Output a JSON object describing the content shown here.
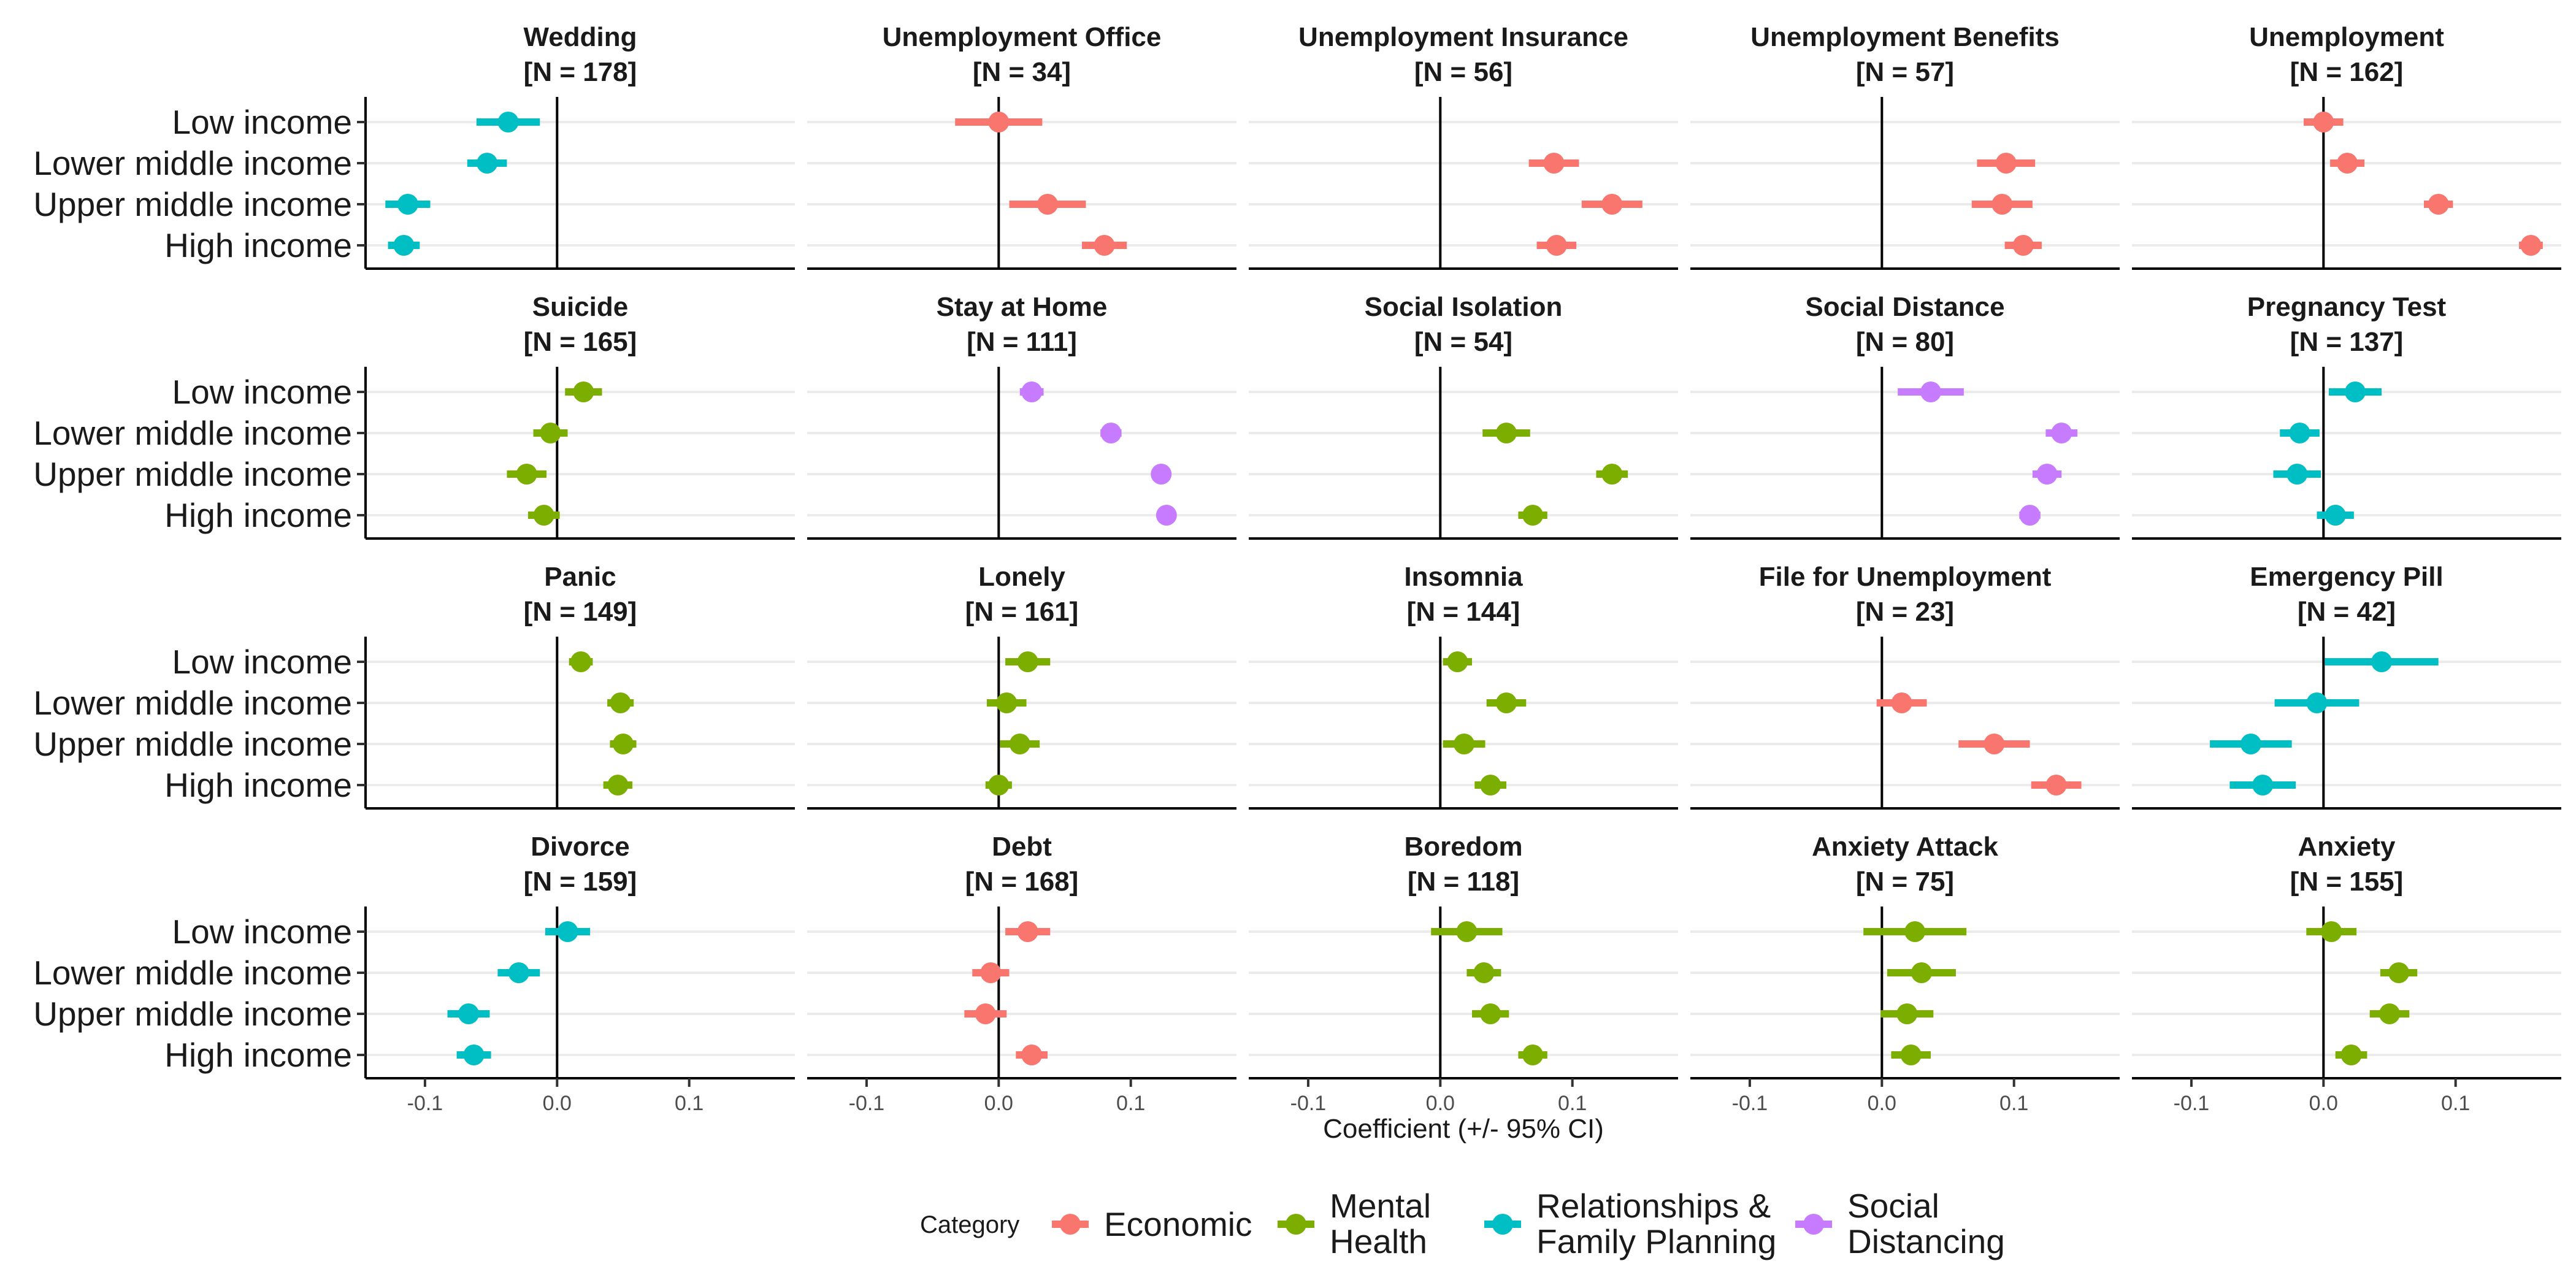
{
  "chart_data": {
    "type": "scatter",
    "subtype": "coefficient-plot-faceted",
    "x_axis": {
      "label": "Coefficient (+/- 95% CI)",
      "ticks": [
        -0.1,
        0.0,
        0.1
      ],
      "tick_labels": [
        "-0.1",
        "0.0",
        "0.1"
      ],
      "xlim": [
        -0.145,
        0.18
      ],
      "reference_line": 0
    },
    "rows": [
      "Low income",
      "Lower middle income",
      "Upper middle income",
      "High income"
    ],
    "legend": {
      "title": "Category",
      "position": "bottom",
      "items": [
        {
          "key": "economic",
          "label": [
            "Economic"
          ],
          "color": "#F8766D"
        },
        {
          "key": "mental",
          "label": [
            "Mental",
            "Health"
          ],
          "color": "#7CAE00"
        },
        {
          "key": "relationships",
          "label": [
            "Relationships &",
            "Family Planning"
          ],
          "color": "#00BFC4"
        },
        {
          "key": "social",
          "label": [
            "Social",
            "Distancing"
          ],
          "color": "#C77CFF"
        }
      ]
    },
    "grid": {
      "horizontal_major": true,
      "vertical": false
    },
    "panels": [
      {
        "title": "Wedding",
        "n": "[N = 178]",
        "category": "relationships",
        "estimates": [
          -0.037,
          -0.053,
          -0.113,
          -0.116
        ],
        "ci_low": [
          -0.061,
          -0.068,
          -0.13,
          -0.128
        ],
        "ci_high": [
          -0.013,
          -0.038,
          -0.096,
          -0.104
        ]
      },
      {
        "title": "Unemployment Office",
        "n": "[N = 34]",
        "category": "economic",
        "estimates": [
          0.0,
          0.037,
          0.08
        ],
        "ci_low": [
          -0.033,
          0.008,
          0.063
        ],
        "ci_high": [
          0.033,
          0.066,
          0.097
        ],
        "rows_shown": [
          0,
          2,
          3
        ]
      },
      {
        "title": "Unemployment Insurance",
        "n": "[N = 56]",
        "category": "economic",
        "estimates": [
          0.086,
          0.13,
          0.088
        ],
        "ci_low": [
          0.067,
          0.107,
          0.073
        ],
        "ci_high": [
          0.105,
          0.153,
          0.103
        ],
        "rows_shown": [
          1,
          2,
          3
        ]
      },
      {
        "title": "Unemployment Benefits",
        "n": "[N = 57]",
        "category": "economic",
        "estimates": [
          0.094,
          0.091,
          0.107
        ],
        "ci_low": [
          0.072,
          0.068,
          0.093
        ],
        "ci_high": [
          0.116,
          0.114,
          0.121
        ],
        "rows_shown": [
          1,
          2,
          3
        ]
      },
      {
        "title": "Unemployment",
        "n": "[N = 162]",
        "category": "economic",
        "estimates": [
          0.0,
          0.018,
          0.087,
          0.157
        ],
        "ci_low": [
          -0.015,
          0.005,
          0.076,
          0.148
        ],
        "ci_high": [
          0.015,
          0.031,
          0.098,
          0.166
        ]
      },
      {
        "title": "Suicide",
        "n": "[N = 165]",
        "category": "mental",
        "estimates": [
          0.02,
          -0.005,
          -0.023,
          -0.01
        ],
        "ci_low": [
          0.006,
          -0.018,
          -0.038,
          -0.022
        ],
        "ci_high": [
          0.034,
          0.008,
          -0.008,
          0.002
        ]
      },
      {
        "title": "Stay at Home",
        "n": "[N = 111]",
        "category": "social",
        "estimates": [
          0.025,
          0.085,
          0.123,
          0.127
        ],
        "ci_low": [
          0.016,
          0.077,
          0.117,
          0.121
        ],
        "ci_high": [
          0.034,
          0.093,
          0.129,
          0.133
        ]
      },
      {
        "title": "Social Isolation",
        "n": "[N = 54]",
        "category": "mental",
        "estimates": [
          0.05,
          0.13,
          0.07
        ],
        "ci_low": [
          0.032,
          0.118,
          0.059
        ],
        "ci_high": [
          0.068,
          0.142,
          0.081
        ],
        "rows_shown": [
          1,
          2,
          3
        ]
      },
      {
        "title": "Social Distance",
        "n": "[N = 80]",
        "category": "social",
        "estimates": [
          0.037,
          0.136,
          0.125,
          0.112
        ],
        "ci_low": [
          0.012,
          0.124,
          0.114,
          0.104
        ],
        "ci_high": [
          0.062,
          0.148,
          0.136,
          0.12
        ]
      },
      {
        "title": "Pregnancy Test",
        "n": "[N = 137]",
        "category": "relationships",
        "estimates": [
          0.024,
          -0.018,
          -0.02,
          0.009
        ],
        "ci_low": [
          0.004,
          -0.033,
          -0.038,
          -0.005
        ],
        "ci_high": [
          0.044,
          -0.003,
          -0.002,
          0.023
        ]
      },
      {
        "title": "Panic",
        "n": "[N = 149]",
        "category": "mental",
        "estimates": [
          0.018,
          0.048,
          0.05,
          0.046
        ],
        "ci_low": [
          0.009,
          0.038,
          0.04,
          0.035
        ],
        "ci_high": [
          0.027,
          0.058,
          0.06,
          0.057
        ]
      },
      {
        "title": "Lonely",
        "n": "[N = 161]",
        "category": "mental",
        "estimates": [
          0.022,
          0.006,
          0.016,
          0.0
        ],
        "ci_low": [
          0.005,
          -0.009,
          0.001,
          -0.01
        ],
        "ci_high": [
          0.039,
          0.021,
          0.031,
          0.01
        ]
      },
      {
        "title": "Insomnia",
        "n": "[N = 144]",
        "category": "mental",
        "estimates": [
          0.013,
          0.05,
          0.018,
          0.038
        ],
        "ci_low": [
          0.002,
          0.035,
          0.002,
          0.026
        ],
        "ci_high": [
          0.024,
          0.065,
          0.034,
          0.05
        ]
      },
      {
        "title": "File for Unemployment",
        "n": "[N = 23]",
        "category": "economic",
        "estimates": [
          0.015,
          0.085,
          0.132
        ],
        "ci_low": [
          -0.004,
          0.058,
          0.113
        ],
        "ci_high": [
          0.034,
          0.112,
          0.151
        ],
        "rows_shown": [
          1,
          2,
          3
        ]
      },
      {
        "title": "Emergency Pill",
        "n": "[N = 42]",
        "category": "relationships",
        "estimates": [
          0.044,
          -0.005,
          -0.055,
          -0.046
        ],
        "ci_low": [
          0.001,
          -0.037,
          -0.086,
          -0.071
        ],
        "ci_high": [
          0.087,
          0.027,
          -0.024,
          -0.021
        ]
      },
      {
        "title": "Divorce",
        "n": "[N = 159]",
        "category": "relationships",
        "estimates": [
          0.008,
          -0.029,
          -0.067,
          -0.063
        ],
        "ci_low": [
          -0.009,
          -0.045,
          -0.083,
          -0.076
        ],
        "ci_high": [
          0.025,
          -0.013,
          -0.051,
          -0.05
        ]
      },
      {
        "title": "Debt",
        "n": "[N = 168]",
        "category": "economic",
        "estimates": [
          0.022,
          -0.006,
          -0.01,
          0.025
        ],
        "ci_low": [
          0.005,
          -0.02,
          -0.026,
          0.013
        ],
        "ci_high": [
          0.039,
          0.008,
          0.006,
          0.037
        ]
      },
      {
        "title": "Boredom",
        "n": "[N = 118]",
        "category": "mental",
        "estimates": [
          0.02,
          0.033,
          0.038,
          0.07
        ],
        "ci_low": [
          -0.007,
          0.02,
          0.024,
          0.059
        ],
        "ci_high": [
          0.047,
          0.046,
          0.052,
          0.081
        ]
      },
      {
        "title": "Anxiety Attack",
        "n": "[N = 75]",
        "category": "mental",
        "estimates": [
          0.025,
          0.03,
          0.019,
          0.022
        ],
        "ci_low": [
          -0.014,
          0.004,
          -0.001,
          0.007
        ],
        "ci_high": [
          0.064,
          0.056,
          0.039,
          0.037
        ]
      },
      {
        "title": "Anxiety",
        "n": "[N = 155]",
        "category": "mental",
        "estimates": [
          0.006,
          0.057,
          0.05,
          0.021
        ],
        "ci_low": [
          -0.013,
          0.043,
          0.035,
          0.009
        ],
        "ci_high": [
          0.025,
          0.071,
          0.065,
          0.033
        ]
      }
    ]
  }
}
